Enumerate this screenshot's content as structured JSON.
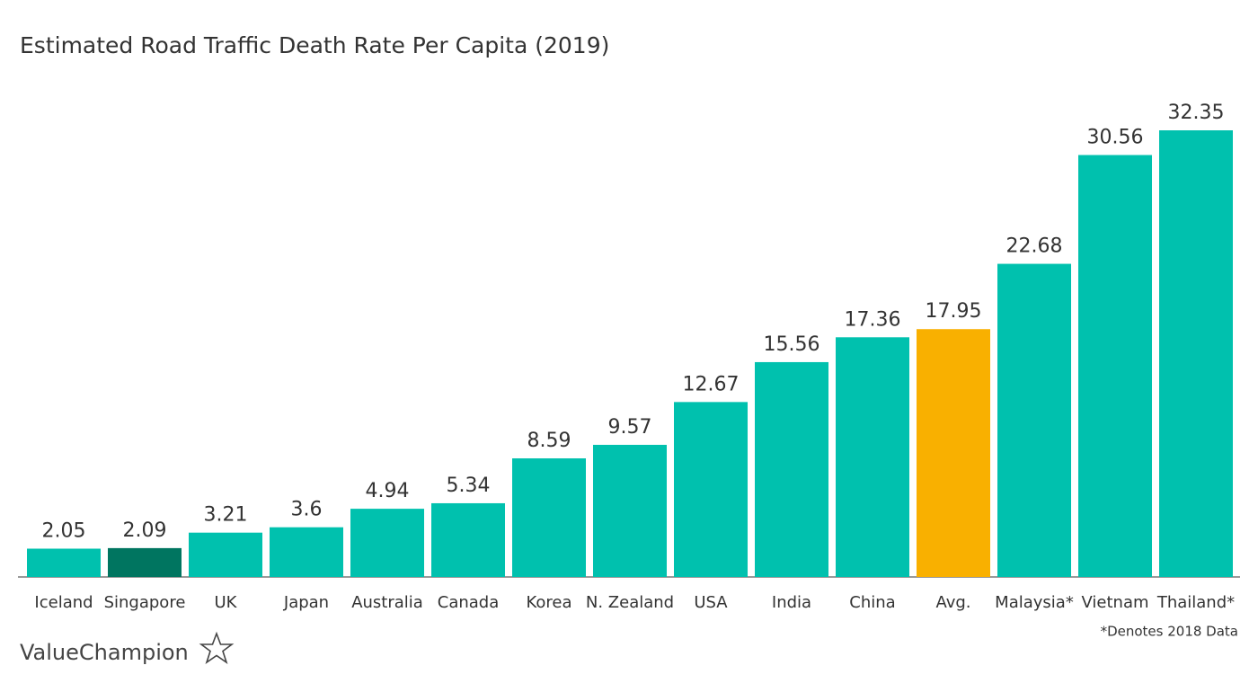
{
  "chart_data": {
    "type": "bar",
    "title": "Estimated Road Traffic Death Rate Per Capita (2019)",
    "categories": [
      "Iceland",
      "Singapore",
      "UK",
      "Japan",
      "Australia",
      "Canada",
      "Korea",
      "N. Zealand",
      "USA",
      "India",
      "China",
      "Avg.",
      "Malaysia*",
      "Vietnam",
      "Thailand*"
    ],
    "values": [
      2.05,
      2.09,
      3.21,
      3.6,
      4.94,
      5.34,
      8.59,
      9.57,
      12.67,
      15.56,
      17.36,
      17.95,
      22.68,
      30.56,
      32.35
    ],
    "colors": [
      "#00c1ae",
      "#007560",
      "#00c1ae",
      "#00c1ae",
      "#00c1ae",
      "#00c1ae",
      "#00c1ae",
      "#00c1ae",
      "#00c1ae",
      "#00c1ae",
      "#00c1ae",
      "#f9b000",
      "#00c1ae",
      "#00c1ae",
      "#00c1ae"
    ],
    "footnote": "*Denotes 2018 Data",
    "logo": "ValueChampion"
  }
}
